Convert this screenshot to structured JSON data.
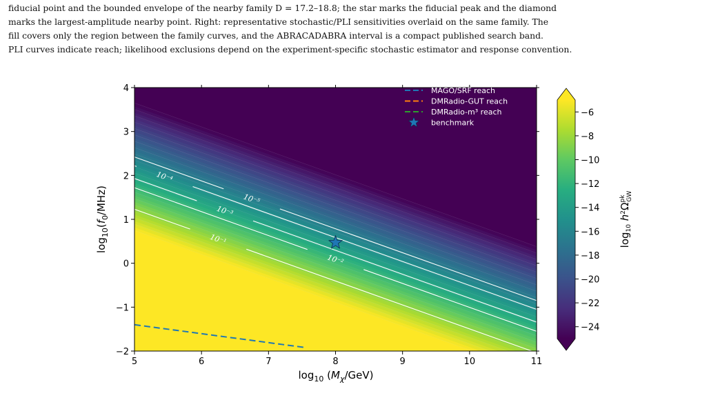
{
  "caption": {
    "line1": "fiducial point and the bounded envelope of the nearby family D = 17.2–18.8; the star marks the fiducial peak and the diamond",
    "line2": "marks the largest-amplitude nearby point. Right: representative stochastic/PLI sensitivities overlaid on the same family. The",
    "line3": "fill covers only the region between the family curves, and the ABRACADABRA interval is a compact published search band.",
    "line4": "PLI curves indicate reach; likelihood exclusions depend on the experiment-specific stochastic estimator and response convention."
  },
  "colors": {
    "cmap": [
      "#440154",
      "#472d7b",
      "#3b528b",
      "#2c728e",
      "#21918c",
      "#28ae80",
      "#5ec962",
      "#addc30",
      "#fde725"
    ],
    "contour": "#ffffff",
    "mago": "#1f77b4",
    "dmradio_gut": "#ff7f0e",
    "dmradio_m3": "#2ca02c",
    "star": "#1f77b4"
  },
  "chart_data": {
    "type": "heatmap",
    "xlabel": "log10(Mχ/GeV)",
    "ylabel": "log10(f0/MHz)",
    "xlim": [
      5,
      11
    ],
    "ylim": [
      -2,
      4
    ],
    "xticks": [
      "5",
      "6",
      "7",
      "8",
      "9",
      "10",
      "11"
    ],
    "yticks": [
      "−2",
      "−1",
      "0",
      "1",
      "2",
      "3",
      "4"
    ],
    "colorbar": {
      "label": "log10 h²Ω_GW^pk",
      "range": [
        -25,
        -5
      ],
      "ticks": [
        "−6",
        "−8",
        "−10",
        "−12",
        "−14",
        "−16",
        "−18",
        "−20",
        "−22",
        "−24"
      ],
      "tick_values": [
        -6,
        -8,
        -10,
        -12,
        -14,
        -16,
        -18,
        -20,
        -22,
        -24
      ]
    },
    "field": {
      "slope_y_per_x": -0.545,
      "fill_bottom_y_at_x5": 0.75,
      "fill_top_y_at_x5": 3.65
    },
    "contours": [
      {
        "label": "10⁻¹",
        "y_at_x5": 1.23,
        "label_x": 6.25
      },
      {
        "label": "10⁻²",
        "y_at_x5": 1.72,
        "label_x": 8.0
      },
      {
        "label": "10⁻³",
        "y_at_x5": 1.93,
        "label_x": 6.35
      },
      {
        "label": "10⁻⁴",
        "y_at_x5": 2.22,
        "label_x": 5.45
      },
      {
        "label": "10⁻⁵",
        "y_at_x5": 2.42,
        "label_x": 6.75
      }
    ],
    "series": [
      {
        "name": "MAGO/SRF reach",
        "style": "dashed",
        "x": [
          5.0,
          7.55
        ],
        "y": [
          -1.4,
          -1.92
        ]
      },
      {
        "name": "DMRadio-GUT reach",
        "style": "dashed",
        "x": [],
        "y": []
      },
      {
        "name": "DMRadio-m³ reach",
        "style": "dashed",
        "x": [],
        "y": []
      }
    ],
    "benchmark": {
      "name": "benchmark",
      "x": 8.0,
      "y": 0.47
    },
    "legend": "top-right"
  }
}
